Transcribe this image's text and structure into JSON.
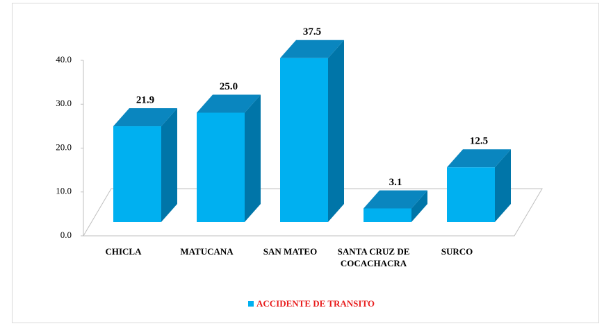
{
  "chart_data": {
    "type": "bar3d",
    "categories": [
      "CHICLA",
      "MATUCANA",
      "SAN MATEO",
      "SANTA CRUZ DE COCACHACRA",
      "SURCO"
    ],
    "series": [
      {
        "name": "ACCIDENTE DE TRANSITO",
        "color": "#00b0f0",
        "values": [
          21.9,
          25.0,
          37.5,
          3.1,
          12.5
        ],
        "value_labels": [
          "21.9",
          "25.0",
          "37.5",
          "3.1",
          "12.5"
        ]
      }
    ],
    "ylim": [
      0,
      40
    ],
    "yticks": [
      {
        "value": 0,
        "label": "0.0"
      },
      {
        "value": 10,
        "label": "10.0"
      },
      {
        "value": 20,
        "label": "20.0"
      },
      {
        "value": 30,
        "label": "30.0"
      },
      {
        "value": 40,
        "label": "40.0"
      }
    ],
    "legend": "bottom"
  }
}
